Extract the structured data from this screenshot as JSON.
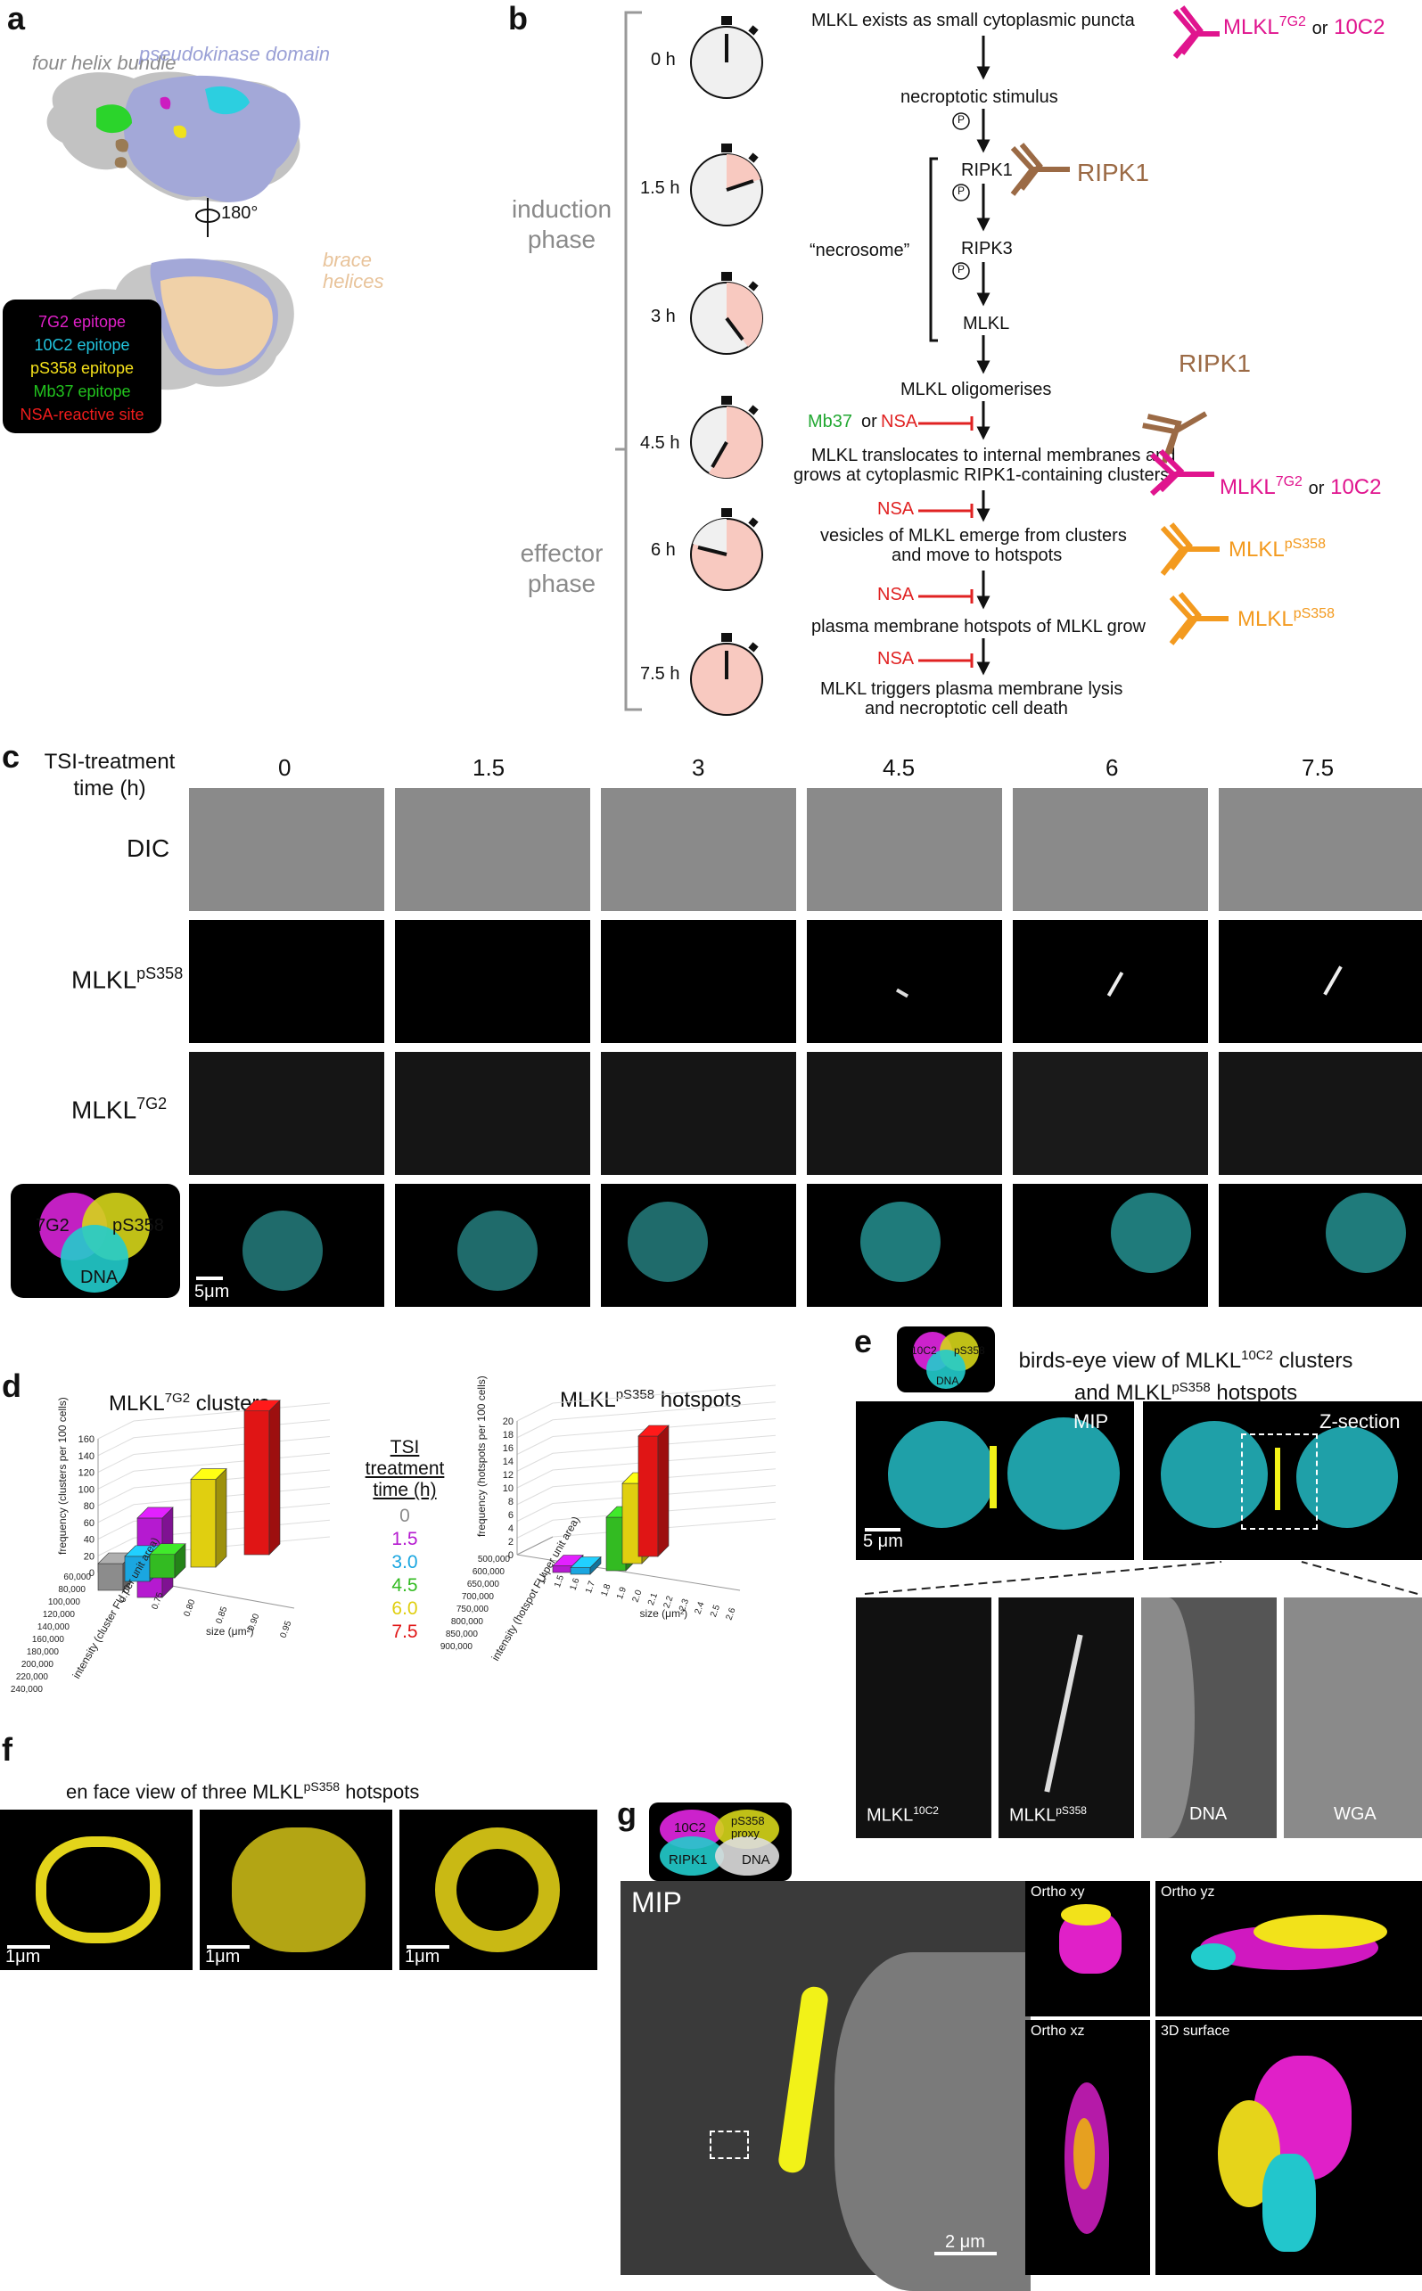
{
  "panels": {
    "a": "a",
    "b": "b",
    "c": "c",
    "d": "d",
    "e": "e",
    "f": "f",
    "g": "g"
  },
  "panel_a": {
    "label_fhb": "four helix bundle",
    "label_pkd": "pseudokinase domain",
    "label_brace": "brace helices",
    "rotation": "180°",
    "legend": [
      {
        "text": "7G2 epitope",
        "color": "#e020c8"
      },
      {
        "text": "10C2 epitope",
        "color": "#22c6e0"
      },
      {
        "text": "pS358 epitope",
        "color": "#f5e11a"
      },
      {
        "text": "Mb37 epitope",
        "color": "#22c41e"
      },
      {
        "text": "NSA-reactive site",
        "color": "#ee1c1c"
      }
    ]
  },
  "panel_b": {
    "phase_induction": "induction phase",
    "phase_effector": "effector phase",
    "times": [
      "0 h",
      "1.5 h",
      "3 h",
      "4.5 h",
      "6 h",
      "7.5 h"
    ],
    "steps": [
      "MLKL exists as small cytoplasmic puncta",
      "necroptotic stimulus",
      "RIPK1",
      "RIPK3",
      "MLKL",
      "MLKL oligomerises",
      "MLKL translocates to internal membranes and",
      "grows at cytoplasmic RIPK1-containing clusters",
      "vesicles of MLKL emerge from clusters",
      "and move to hotspots",
      "plasma membrane hotspots of MLKL grow",
      "MLKL triggers plasma membrane lysis",
      "and necroptotic cell death"
    ],
    "necrosome": "“necrosome”",
    "mb37": "Mb37",
    "or": "or",
    "nsa": "NSA",
    "p": "P",
    "ab1": {
      "base": "MLKL",
      "sup": "7G2",
      "or": "or",
      "alt": "10C2"
    },
    "ab_ripk1": "RIPK1",
    "ab_ripk1_b": "RIPK1",
    "ab3": {
      "base": "MLKL",
      "sup": "7G2",
      "or": "or",
      "alt": "10C2"
    },
    "ab4": {
      "base": "MLKL",
      "sup": "pS358"
    },
    "ab5": {
      "base": "MLKL",
      "sup": "pS358"
    }
  },
  "panel_c": {
    "header_line1": "TSI-treatment",
    "header_line2": "time (h)",
    "times": [
      "0",
      "1.5",
      "3",
      "4.5",
      "6",
      "7.5"
    ],
    "rows": {
      "dic": "DIC",
      "ps358_base": "MLKL",
      "ps358_sup": "pS358",
      "g7_base": "MLKL",
      "g7_sup": "7G2"
    },
    "venn": {
      "a": "7G2",
      "b": "pS358",
      "c": "DNA"
    },
    "scale": "5μm"
  },
  "panel_d": {
    "left_title_base": "MLKL",
    "left_title_sup": "7G2",
    "left_title_rest": " clusters",
    "right_title_base": "MLKL",
    "right_title_sup": "pS358",
    "right_title_rest": " hotspots",
    "legend_title": [
      "TSI",
      "treatment",
      "time (h)"
    ],
    "legend": [
      {
        "t": "0",
        "c": "#8c8c8c"
      },
      {
        "t": "1.5",
        "c": "#b51ad0"
      },
      {
        "t": "3.0",
        "c": "#1aa6e0"
      },
      {
        "t": "4.5",
        "c": "#33bb22"
      },
      {
        "t": "6.0",
        "c": "#e0cf10"
      },
      {
        "t": "7.5",
        "c": "#e01515"
      }
    ],
    "left_zlabel": "frequency (clusters per 100 cells)",
    "left_ylabel": "intensity (cluster FU per unit area)",
    "left_xlabel": "size (μm²)",
    "left_zticks": [
      "160",
      "140",
      "120",
      "100",
      "80",
      "60",
      "40",
      "20",
      "0"
    ],
    "left_yticks": [
      "60,000",
      "80,000",
      "100,000",
      "120,000",
      "140,000",
      "160,000",
      "180,000",
      "200,000",
      "220,000",
      "240,000"
    ],
    "left_xticks": [
      "0.70",
      "0.75",
      "0.80",
      "0.85",
      "0.90",
      "0.95"
    ],
    "right_zlabel": "frequency (hotspots per 100 cells)",
    "right_ylabel": "intensity (hotspot FU per unit area)",
    "right_xlabel": "size (μm²)",
    "right_zticks": [
      "20",
      "18",
      "16",
      "14",
      "12",
      "10",
      "8",
      "6",
      "4",
      "2",
      "0"
    ],
    "right_yticks": [
      "500,000",
      "600,000",
      "650,000",
      "700,000",
      "750,000",
      "800,000",
      "850,000",
      "900,000"
    ],
    "right_xticks": [
      "1.4",
      "1.5",
      "1.6",
      "1.7",
      "1.8",
      "1.9",
      "2.0",
      "2.1",
      "2.2",
      "2.3",
      "2.4",
      "2.5",
      "2.6"
    ]
  },
  "chart_data": [
    {
      "type": "bar",
      "title": "MLKL7G2 clusters",
      "xlabel": "size (μm²)",
      "ylabel": "intensity (cluster FU per unit area)",
      "zlabel": "frequency (clusters per 100 cells)",
      "categories": [
        "0",
        "1.5",
        "3.0",
        "4.5",
        "6.0",
        "7.5"
      ],
      "values": [
        32,
        95,
        30,
        28,
        105,
        172
      ],
      "zlim": [
        0,
        160
      ]
    },
    {
      "type": "bar",
      "title": "MLKLpS358 hotspots",
      "xlabel": "size (μm²)",
      "ylabel": "intensity (hotspot FU per unit area)",
      "zlabel": "frequency (hotspots per 100 cells)",
      "categories": [
        "0",
        "1.5",
        "3.0",
        "4.5",
        "6.0",
        "7.5"
      ],
      "values": [
        0,
        1,
        1,
        8,
        12,
        18
      ],
      "zlim": [
        0,
        20
      ]
    }
  ],
  "panel_e": {
    "venn": {
      "a": "10C2",
      "b": "pS358",
      "c": "DNA"
    },
    "title_l1_a": "birds-eye view of MLKL",
    "title_l1_sup": "10C2",
    "title_l1_b": " clusters",
    "title_l2_a": "and MLKL",
    "title_l2_sup": "pS358",
    "title_l2_b": " hotspots",
    "mip": "MIP",
    "zsec": "Z-section",
    "scale": "5 μm",
    "cap1_base": "MLKL",
    "cap1_sup": "10C2",
    "cap2_base": "MLKL",
    "cap2_sup": "pS358",
    "cap3": "DNA",
    "cap4": "WGA"
  },
  "panel_f": {
    "title_a": "en face view of three MLKL",
    "title_sup": "pS358",
    "title_b": " hotspots",
    "scale": "1μm"
  },
  "panel_g": {
    "venn": {
      "a": "10C2",
      "b": "pS358 proxy",
      "c": "RIPK1",
      "d": "DNA"
    },
    "mip": "MIP",
    "scale": "2 μm",
    "ortho_xy": "Ortho xy",
    "ortho_yz": "Ortho yz",
    "ortho_xz": "Ortho xz",
    "surface": "3D surface"
  }
}
